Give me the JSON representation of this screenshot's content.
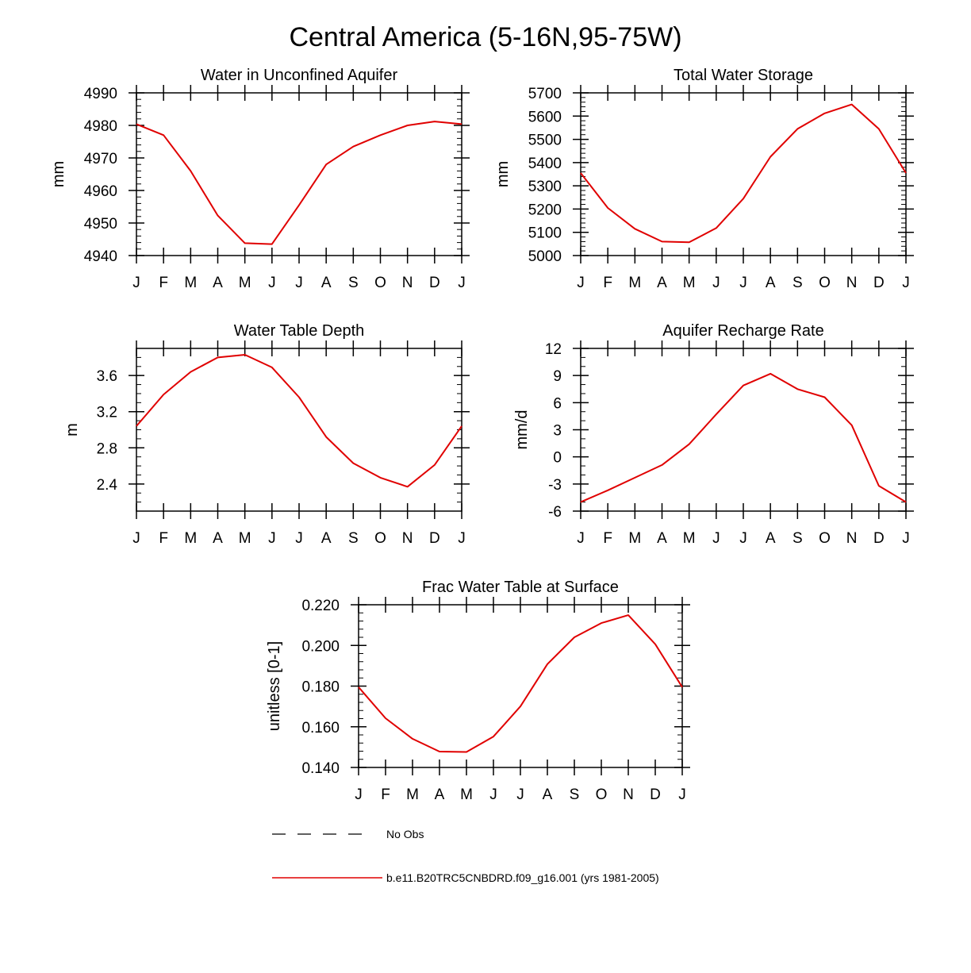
{
  "figure": {
    "title": "Central America (5-16N,95-75W)",
    "series_color": "#e00000",
    "obs_color": "#000000"
  },
  "legend": {
    "obs_label": "No Obs",
    "model_label": "b.e11.B20TRC5CNBDRD.f09_g16.001 (yrs 1981-2005)"
  },
  "chart_data": [
    {
      "type": "line",
      "title": "Water in Unconfined Aquifer",
      "xlabel": "",
      "ylabel": "mm",
      "categories": [
        "J",
        "F",
        "M",
        "A",
        "M",
        "J",
        "J",
        "A",
        "S",
        "O",
        "N",
        "D",
        "J"
      ],
      "ylim": [
        4940,
        4990
      ],
      "yticks": [
        4940,
        4950,
        4960,
        4970,
        4980,
        4990
      ],
      "ytick_labels": [
        "4940",
        "4950",
        "4960",
        "4970",
        "4980",
        "4990"
      ],
      "yminor": 2,
      "series": [
        {
          "name": "b.e11.B20TRC5CNBDRD.f09_g16.001 (yrs 1981-2005)",
          "values": [
            4980.4,
            4977.0,
            4966.0,
            4952.3,
            4943.8,
            4943.5,
            4955.5,
            4968.0,
            4973.5,
            4977.0,
            4980.0,
            4981.2,
            4980.4
          ]
        }
      ]
    },
    {
      "type": "line",
      "title": "Total Water Storage",
      "xlabel": "",
      "ylabel": "mm",
      "categories": [
        "J",
        "F",
        "M",
        "A",
        "M",
        "J",
        "J",
        "A",
        "S",
        "O",
        "N",
        "D",
        "J"
      ],
      "ylim": [
        5000,
        5700
      ],
      "yticks": [
        5000,
        5100,
        5200,
        5300,
        5400,
        5500,
        5600,
        5700
      ],
      "ytick_labels": [
        "5000",
        "5100",
        "5200",
        "5300",
        "5400",
        "5500",
        "5600",
        "5700"
      ],
      "yminor": 20,
      "series": [
        {
          "name": "b.e11.B20TRC5CNBDRD.f09_g16.001 (yrs 1981-2005)",
          "values": [
            5355,
            5205,
            5115,
            5060,
            5057,
            5118,
            5245,
            5425,
            5545,
            5612,
            5650,
            5545,
            5355
          ]
        }
      ]
    },
    {
      "type": "line",
      "title": "Water Table Depth",
      "xlabel": "",
      "ylabel": "m",
      "categories": [
        "J",
        "F",
        "M",
        "A",
        "M",
        "J",
        "J",
        "A",
        "S",
        "O",
        "N",
        "D",
        "J"
      ],
      "ylim": [
        2.1,
        3.9
      ],
      "yticks": [
        2.4,
        2.8,
        3.2,
        3.6
      ],
      "ytick_labels": [
        "2.4",
        "2.8",
        "3.2",
        "3.6"
      ],
      "yminor": 0.1,
      "series": [
        {
          "name": "b.e11.B20TRC5CNBDRD.f09_g16.001 (yrs 1981-2005)",
          "values": [
            3.04,
            3.39,
            3.64,
            3.8,
            3.83,
            3.69,
            3.36,
            2.92,
            2.63,
            2.47,
            2.37,
            2.61,
            3.04
          ]
        }
      ]
    },
    {
      "type": "line",
      "title": "Aquifer Recharge Rate",
      "xlabel": "",
      "ylabel": "mm/d",
      "categories": [
        "J",
        "F",
        "M",
        "A",
        "M",
        "J",
        "J",
        "A",
        "S",
        "O",
        "N",
        "D",
        "J"
      ],
      "ylim": [
        -6,
        12
      ],
      "yticks": [
        -6,
        -3,
        0,
        3,
        6,
        9,
        12
      ],
      "ytick_labels": [
        "-6",
        "-3",
        "0",
        "3",
        "6",
        "9",
        "12"
      ],
      "yminor": 1,
      "series": [
        {
          "name": "b.e11.B20TRC5CNBDRD.f09_g16.001 (yrs 1981-2005)",
          "values": [
            -5.0,
            -3.7,
            -2.3,
            -0.9,
            1.4,
            4.7,
            7.9,
            9.2,
            7.5,
            6.6,
            3.5,
            -3.2,
            -5.0
          ]
        }
      ]
    },
    {
      "type": "line",
      "title": "Frac Water Table at Surface",
      "xlabel": "",
      "ylabel": "unitless [0-1]",
      "categories": [
        "J",
        "F",
        "M",
        "A",
        "M",
        "J",
        "J",
        "A",
        "S",
        "O",
        "N",
        "D",
        "J"
      ],
      "ylim": [
        0.14,
        0.22
      ],
      "yticks": [
        0.14,
        0.16,
        0.18,
        0.2,
        0.22
      ],
      "ytick_labels": [
        "0.140",
        "0.160",
        "0.180",
        "0.200",
        "0.220"
      ],
      "yminor": 0.004,
      "series": [
        {
          "name": "b.e11.B20TRC5CNBDRD.f09_g16.001 (yrs 1981-2005)",
          "values": [
            0.1795,
            0.1642,
            0.1541,
            0.1478,
            0.1476,
            0.1552,
            0.17,
            0.1908,
            0.204,
            0.211,
            0.2149,
            0.2006,
            0.1795
          ]
        }
      ]
    }
  ]
}
